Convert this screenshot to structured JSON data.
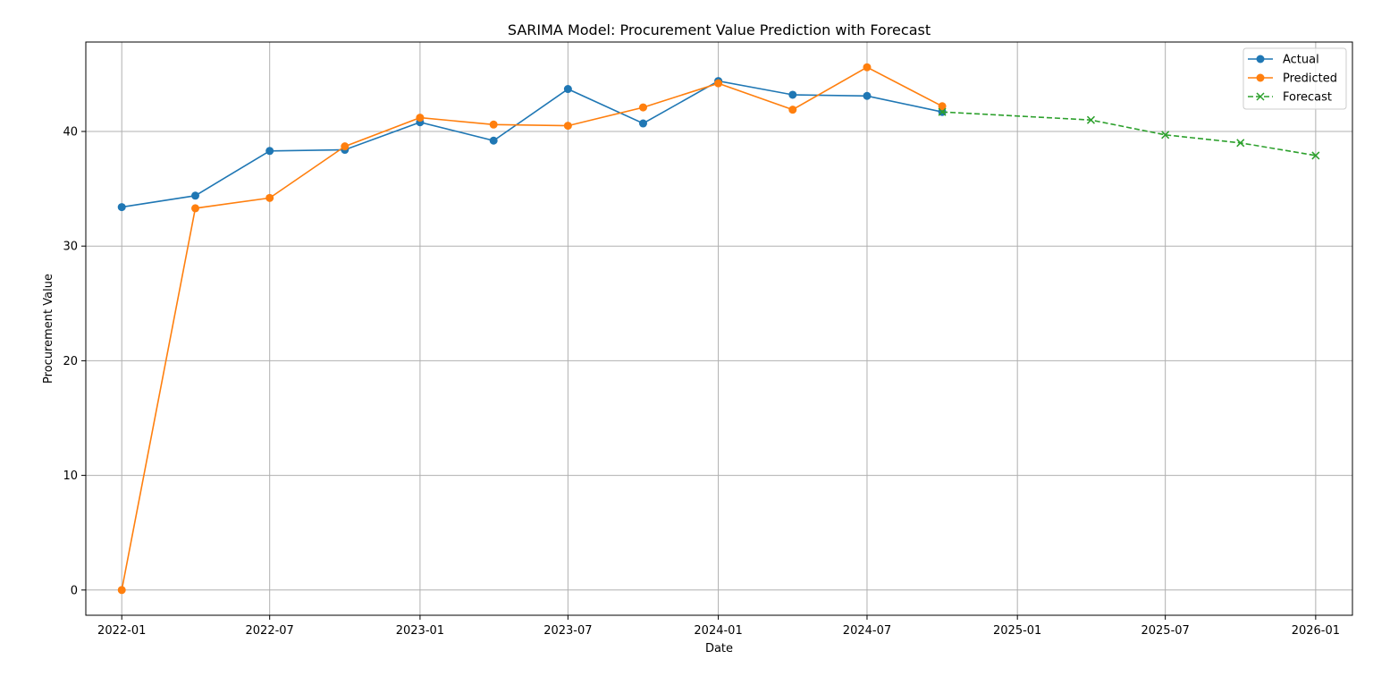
{
  "chart_data": {
    "type": "line",
    "title": "SARIMA Model: Procurement Value Prediction with Forecast",
    "xlabel": "Date",
    "ylabel": "Procurement Value",
    "x_axis_type": "date",
    "xlim": [
      "2021-11-18",
      "2026-02-15"
    ],
    "ylim": [
      -2.2,
      47.8
    ],
    "x_ticks": [
      "2022-01",
      "2022-07",
      "2023-01",
      "2023-07",
      "2024-01",
      "2024-07",
      "2025-01",
      "2025-07",
      "2026-01"
    ],
    "y_ticks": [
      0,
      10,
      20,
      30,
      40
    ],
    "grid": true,
    "legend": "top-right",
    "series": [
      {
        "name": "Actual",
        "color": "#1f77b4",
        "marker": "circle",
        "line_style": "solid",
        "points": [
          {
            "x": "2022-01-01",
            "y": 33.4
          },
          {
            "x": "2022-04-01",
            "y": 34.4
          },
          {
            "x": "2022-07-01",
            "y": 38.3
          },
          {
            "x": "2022-10-01",
            "y": 38.4
          },
          {
            "x": "2023-01-01",
            "y": 40.8
          },
          {
            "x": "2023-04-01",
            "y": 39.2
          },
          {
            "x": "2023-07-01",
            "y": 43.7
          },
          {
            "x": "2023-10-01",
            "y": 40.7
          },
          {
            "x": "2024-01-01",
            "y": 44.4
          },
          {
            "x": "2024-04-01",
            "y": 43.2
          },
          {
            "x": "2024-07-01",
            "y": 43.1
          },
          {
            "x": "2024-10-01",
            "y": 41.7
          }
        ]
      },
      {
        "name": "Predicted",
        "color": "#ff7f0e",
        "marker": "circle",
        "line_style": "solid",
        "points": [
          {
            "x": "2022-01-01",
            "y": 0.0
          },
          {
            "x": "2022-04-01",
            "y": 33.3
          },
          {
            "x": "2022-07-01",
            "y": 34.2
          },
          {
            "x": "2022-10-01",
            "y": 38.7
          },
          {
            "x": "2023-01-01",
            "y": 41.2
          },
          {
            "x": "2023-04-01",
            "y": 40.6
          },
          {
            "x": "2023-07-01",
            "y": 40.5
          },
          {
            "x": "2023-10-01",
            "y": 42.1
          },
          {
            "x": "2024-01-01",
            "y": 44.2
          },
          {
            "x": "2024-04-01",
            "y": 41.9
          },
          {
            "x": "2024-07-01",
            "y": 45.6
          },
          {
            "x": "2024-10-01",
            "y": 42.2
          }
        ]
      },
      {
        "name": "Forecast",
        "color": "#2ca02c",
        "marker": "x",
        "line_style": "dashed",
        "points": [
          {
            "x": "2024-10-01",
            "y": 41.7
          },
          {
            "x": "2025-04-01",
            "y": 41.0
          },
          {
            "x": "2025-07-01",
            "y": 39.7
          },
          {
            "x": "2025-10-01",
            "y": 39.0
          },
          {
            "x": "2026-01-01",
            "y": 37.9
          }
        ]
      }
    ]
  }
}
